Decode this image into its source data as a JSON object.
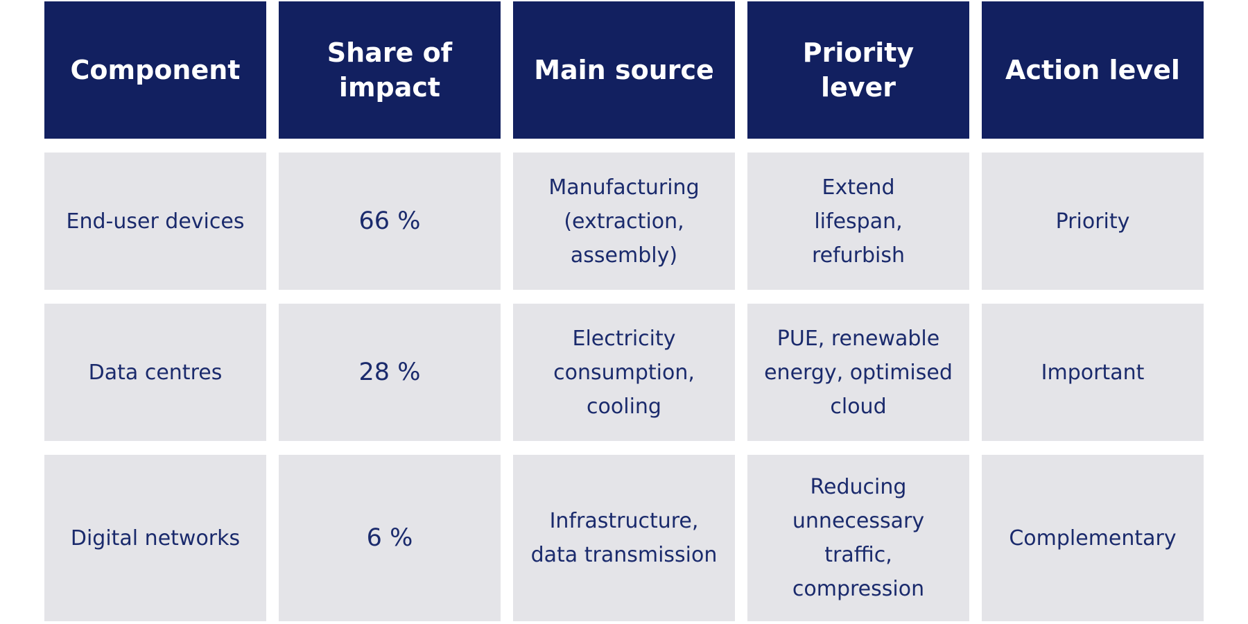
{
  "headers": [
    "Component",
    "Share of impact",
    "Main source",
    "Priority lever",
    "Action level"
  ],
  "rows": [
    {
      "component": "End-user devices",
      "share": "66 %",
      "source": "Manufacturing (extraction, assembly)",
      "lever": "Extend lifespan, refurbish",
      "level": "Priority"
    },
    {
      "component": "Data centres",
      "share": "28 %",
      "source": "Electricity consumption, cooling",
      "lever": "PUE, renewable energy, optimised cloud",
      "level": "Important"
    },
    {
      "component": "Digital networks",
      "share": "6 %",
      "source": "Infrastructure, data transmission",
      "lever": "Reducing unnecessary traffic, compression",
      "level": "Complementary"
    }
  ],
  "colors": {
    "header_bg": "#122060",
    "header_text": "#ffffff",
    "cell_bg": "#e4e4e8",
    "cell_text": "#1a2a6c"
  }
}
